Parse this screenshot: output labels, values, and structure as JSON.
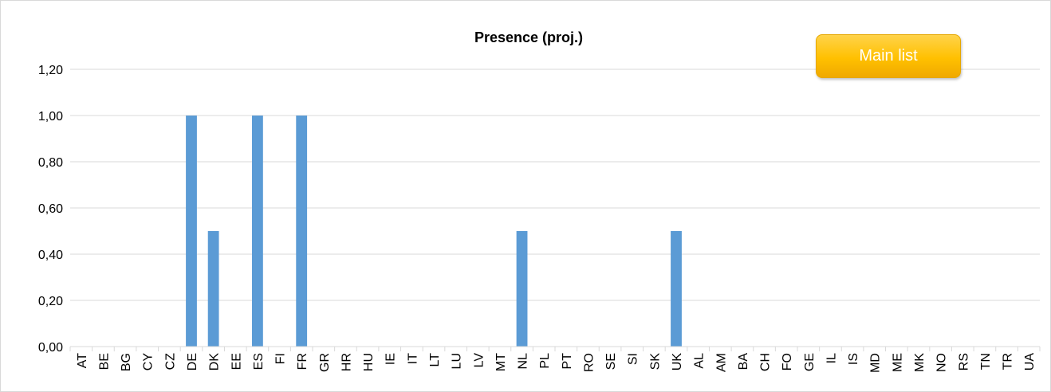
{
  "main_button": {
    "label": "Main list",
    "color": "#ffc000"
  },
  "chart_data": {
    "type": "bar",
    "title": "Presence (proj.)",
    "xlabel": "",
    "ylabel": "",
    "ylim": [
      0,
      1.2
    ],
    "yticks": [
      "0,00",
      "0,20",
      "0,40",
      "0,60",
      "0,80",
      "1,00",
      "1,20"
    ],
    "grid": true,
    "legend": "none",
    "bar_color": "#5b9bd5",
    "categories": [
      "AT",
      "BE",
      "BG",
      "CY",
      "CZ",
      "DE",
      "DK",
      "EE",
      "ES",
      "FI",
      "FR",
      "GR",
      "HR",
      "HU",
      "IE",
      "IT",
      "LT",
      "LU",
      "LV",
      "MT",
      "NL",
      "PL",
      "PT",
      "RO",
      "SE",
      "SI",
      "SK",
      "UK",
      "AL",
      "AM",
      "BA",
      "CH",
      "FO",
      "GE",
      "IL",
      "IS",
      "MD",
      "ME",
      "MK",
      "NO",
      "RS",
      "TN",
      "TR",
      "UA"
    ],
    "values": [
      0,
      0,
      0,
      0,
      0,
      1,
      0.5,
      0,
      1,
      0,
      1,
      0,
      0,
      0,
      0,
      0,
      0,
      0,
      0,
      0,
      0.5,
      0,
      0,
      0,
      0,
      0,
      0,
      0.5,
      0,
      0,
      0,
      0,
      0,
      0,
      0,
      0,
      0,
      0,
      0,
      0,
      0,
      0,
      0,
      0
    ]
  }
}
